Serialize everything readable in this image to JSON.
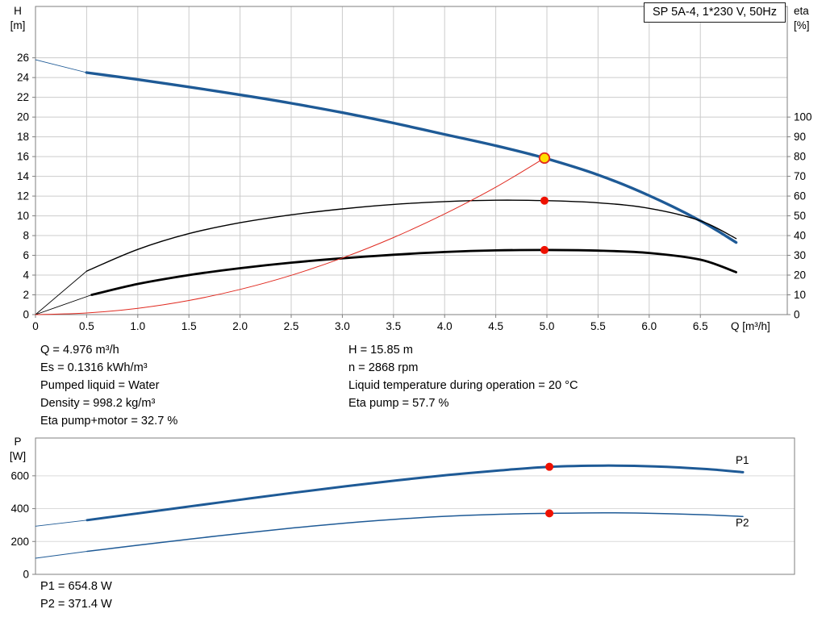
{
  "colors": {
    "curve_blue": "#1e5a96",
    "curve_black": "#000000",
    "curve_red": "#e02a20",
    "dot_red": "#ee1100",
    "dot_yellow": "#ffe000",
    "grid": "#cccccc",
    "grid_light": "#dadada",
    "frame": "#7f7f7f",
    "text": "#000000"
  },
  "annotations": {
    "left": [
      "Q = 4.976 m³/h",
      "Es = 0.1316 kWh/m³",
      "Pumped liquid = Water",
      "Density = 998.2 kg/m³",
      "Eta pump+motor = 32.7 %"
    ],
    "right": [
      "H = 15.85 m",
      "n = 2868 rpm",
      "Liquid temperature during operation = 20 °C",
      "Eta pump = 57.7 %"
    ]
  },
  "results": {
    "p1": "P1 = 654.8 W",
    "p2": "P2 = 371.4 W"
  },
  "chart_data": [
    {
      "id": "qh-eta-chart",
      "type": "line",
      "title": "SP 5A-4, 1*230 V, 50Hz",
      "grid": true,
      "x_axis": {
        "label": "Q [m³/h]",
        "range": [
          0,
          7.35
        ],
        "ticks": [
          [
            0,
            "0"
          ],
          [
            0.5,
            "0.5"
          ],
          [
            1,
            "1.0"
          ],
          [
            1.5,
            "1.5"
          ],
          [
            2,
            "2.0"
          ],
          [
            2.5,
            "2.5"
          ],
          [
            3,
            "3.0"
          ],
          [
            3.5,
            "3.5"
          ],
          [
            4,
            "4.0"
          ],
          [
            4.5,
            "4.5"
          ],
          [
            5,
            "5.0"
          ],
          [
            5.5,
            "5.5"
          ],
          [
            6,
            "6.0"
          ],
          [
            6.5,
            "6.5"
          ]
        ]
      },
      "y_left_axis": {
        "label": [
          "H",
          "[m]"
        ],
        "range": [
          0,
          31.2
        ],
        "ticks": [
          [
            0,
            "0"
          ],
          [
            2,
            "2"
          ],
          [
            4,
            "4"
          ],
          [
            6,
            "6"
          ],
          [
            8,
            "8"
          ],
          [
            10,
            "10"
          ],
          [
            12,
            "12"
          ],
          [
            14,
            "14"
          ],
          [
            16,
            "16"
          ],
          [
            18,
            "18"
          ],
          [
            20,
            "20"
          ],
          [
            22,
            "22"
          ],
          [
            24,
            "24"
          ],
          [
            26,
            "26"
          ]
        ]
      },
      "y_right_axis": {
        "label": [
          "eta",
          "[%]"
        ],
        "eta_per_h": 5,
        "range": [
          0,
          156
        ],
        "ticks": [
          [
            0,
            "0"
          ],
          [
            10,
            "10"
          ],
          [
            20,
            "20"
          ],
          [
            30,
            "30"
          ],
          [
            40,
            "40"
          ],
          [
            50,
            "50"
          ],
          [
            60,
            "60"
          ],
          [
            70,
            "70"
          ],
          [
            80,
            "80"
          ],
          [
            90,
            "90"
          ],
          [
            100,
            "100"
          ]
        ]
      },
      "series": [
        {
          "name": "head-curve",
          "axis": "left",
          "color": "blue",
          "width": 3.4,
          "thin_until": 0.5,
          "points": [
            [
              0,
              25.8
            ],
            [
              0.5,
              24.5
            ],
            [
              1,
              23.8
            ],
            [
              1.5,
              23.05
            ],
            [
              2,
              22.25
            ],
            [
              2.5,
              21.4
            ],
            [
              3,
              20.45
            ],
            [
              3.5,
              19.4
            ],
            [
              4,
              18.25
            ],
            [
              4.5,
              17.1
            ],
            [
              4.976,
              15.85
            ],
            [
              5.5,
              14.15
            ],
            [
              6,
              12.05
            ],
            [
              6.5,
              9.5
            ],
            [
              6.85,
              7.3
            ]
          ]
        },
        {
          "name": "eta-pump-curve",
          "axis": "right",
          "color": "black",
          "width": 1.4,
          "thin_until": 0.5,
          "points": [
            [
              0,
              0
            ],
            [
              0.5,
              22
            ],
            [
              1,
              33
            ],
            [
              1.5,
              41
            ],
            [
              2,
              46.5
            ],
            [
              2.5,
              50.5
            ],
            [
              3,
              53.5
            ],
            [
              3.5,
              55.8
            ],
            [
              4,
              57.2
            ],
            [
              4.5,
              57.9
            ],
            [
              4.976,
              57.7
            ],
            [
              5.5,
              56.6
            ],
            [
              6,
              53.8
            ],
            [
              6.5,
              47.5
            ],
            [
              6.85,
              38.5
            ]
          ]
        },
        {
          "name": "eta-pump-motor-curve",
          "axis": "right",
          "color": "black",
          "width": 2.8,
          "thin_until": 0.55,
          "points": [
            [
              0,
              0
            ],
            [
              0.55,
              10
            ],
            [
              1,
              15.5
            ],
            [
              1.5,
              20
            ],
            [
              2,
              23.5
            ],
            [
              2.5,
              26.3
            ],
            [
              3,
              28.5
            ],
            [
              3.5,
              30.3
            ],
            [
              4,
              31.7
            ],
            [
              4.5,
              32.5
            ],
            [
              4.976,
              32.7
            ],
            [
              5.5,
              32.4
            ],
            [
              6,
              31.2
            ],
            [
              6.5,
              27.8
            ],
            [
              6.85,
              21.5
            ]
          ]
        },
        {
          "name": "system-curve",
          "axis": "left",
          "color": "red",
          "width": 1,
          "points": [
            [
              0,
              0
            ],
            [
              0.5,
              0.16
            ],
            [
              1,
              0.64
            ],
            [
              1.5,
              1.43
            ],
            [
              2,
              2.55
            ],
            [
              2.5,
              3.98
            ],
            [
              3,
              5.73
            ],
            [
              3.5,
              7.8
            ],
            [
              4,
              10.19
            ],
            [
              4.5,
              12.9
            ],
            [
              4.976,
              15.85
            ]
          ]
        }
      ],
      "markers": [
        {
          "q": 4.976,
          "value": 15.85,
          "axis": "left",
          "style": "duty",
          "label": "duty point Q=4.976 H=15.85"
        },
        {
          "q": 4.976,
          "value": 57.7,
          "axis": "right",
          "style": "point",
          "label": "eta pump 57.7%"
        },
        {
          "q": 4.976,
          "value": 32.7,
          "axis": "right",
          "style": "point",
          "label": "eta pump+motor 32.7%"
        }
      ]
    },
    {
      "id": "power-chart",
      "type": "line",
      "x_axis": {
        "range": [
          0,
          7.35
        ],
        "ticks": []
      },
      "y_axis": {
        "label": [
          "P",
          "[W]"
        ],
        "range": [
          0,
          830
        ],
        "ticks": [
          [
            0,
            "0"
          ],
          [
            200,
            "200"
          ],
          [
            400,
            "400"
          ],
          [
            600,
            "600"
          ]
        ]
      },
      "series": [
        {
          "name": "p1-curve",
          "label": "P1",
          "color": "blue",
          "width": 3,
          "thin_until": 0.5,
          "label_pos": [
            6.78,
            672
          ],
          "points": [
            [
              0,
              293
            ],
            [
              0.5,
              330
            ],
            [
              1,
              372
            ],
            [
              1.5,
              414
            ],
            [
              2,
              456
            ],
            [
              2.5,
              497
            ],
            [
              3,
              536
            ],
            [
              3.5,
              572
            ],
            [
              4,
              605
            ],
            [
              4.5,
              633
            ],
            [
              4.976,
              654.8
            ],
            [
              5.5,
              662
            ],
            [
              6,
              657
            ],
            [
              6.5,
              641
            ],
            [
              6.85,
              622
            ]
          ]
        },
        {
          "name": "p2-curve",
          "label": "P2",
          "color": "blue",
          "width": 1.5,
          "thin_until": 0.5,
          "label_pos": [
            6.78,
            292
          ],
          "points": [
            [
              0,
              98
            ],
            [
              0.5,
              140
            ],
            [
              1,
              178
            ],
            [
              1.5,
              215
            ],
            [
              2,
              250
            ],
            [
              2.5,
              283
            ],
            [
              3,
              312
            ],
            [
              3.5,
              336
            ],
            [
              4,
              354
            ],
            [
              4.5,
              366
            ],
            [
              4.976,
              371.4
            ],
            [
              5.5,
              374.5
            ],
            [
              6,
              371
            ],
            [
              6.5,
              362
            ],
            [
              6.85,
              352
            ]
          ]
        }
      ],
      "markers": [
        {
          "q": 4.976,
          "value": 654.8,
          "style": "point",
          "label": "P1 = 654.8 W"
        },
        {
          "q": 4.976,
          "value": 371.4,
          "style": "point",
          "label": "P2 = 371.4 W"
        }
      ]
    }
  ]
}
